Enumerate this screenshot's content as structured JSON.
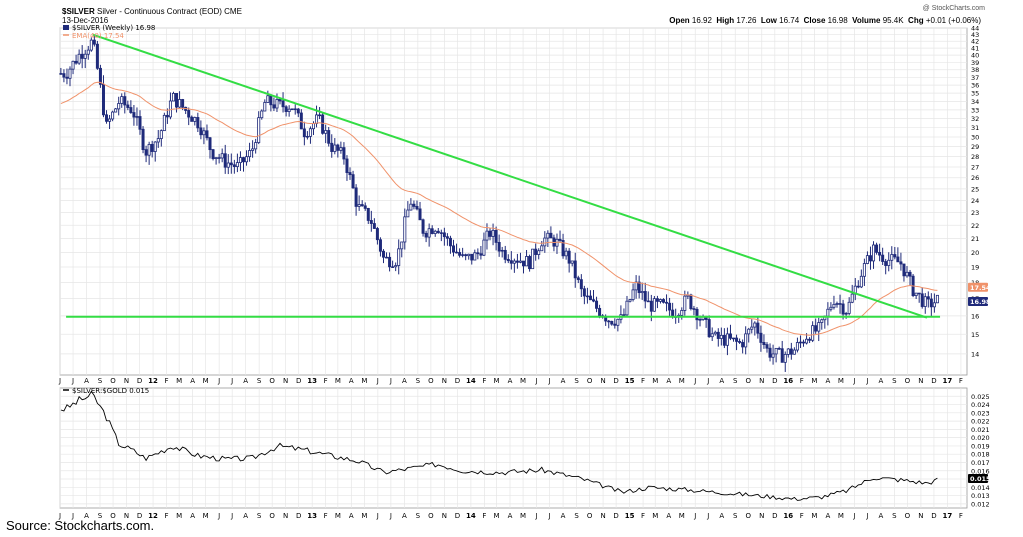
{
  "header": {
    "symbol": "$SILVER",
    "description": "Silver - Continuous Contract (EOD)",
    "exchange": "CME",
    "date": "13-Dec-2016",
    "watermark": "@ StockCharts.com",
    "quote": {
      "open_label": "Open",
      "open": "16.92",
      "high_label": "High",
      "high": "17.26",
      "low_label": "Low",
      "low": "16.74",
      "close_label": "Close",
      "close": "16.98",
      "volume_label": "Volume",
      "volume": "95.4K",
      "chg_label": "Chg",
      "chg": "+0.01 (+0.06%)"
    }
  },
  "legend": {
    "main": "$SILVER (Weekly) 16.98",
    "ema": "EMA(40) 17.54",
    "ratio": "$SILVER:$GOLD 0.015"
  },
  "source": "Source: Stockcharts.com.",
  "colors": {
    "candle": "#1f2a7a",
    "ema": "#f0926a",
    "trendline": "#33dd44",
    "ratio_line": "#000000",
    "grid": "#e6e6e6",
    "close_badge": "#1f2a7a",
    "ema_badge": "#f0926a"
  },
  "chart_data": [
    {
      "type": "candlestick",
      "title": "$SILVER (Weekly) 16.98",
      "ylim": [
        13,
        44
      ],
      "y_scale": "log",
      "y_ticks": [
        14,
        15,
        16,
        17,
        18,
        19,
        20,
        21,
        22,
        23,
        24,
        25,
        26,
        27,
        28,
        29,
        30,
        31,
        32,
        33,
        34,
        35,
        36,
        37,
        38,
        39,
        40,
        41,
        42,
        43,
        44
      ],
      "grid": true,
      "x_tick_labels": [
        "J",
        "J",
        "A",
        "S",
        "O",
        "N",
        "D",
        "12",
        "F",
        "M",
        "A",
        "M",
        "J",
        "J",
        "A",
        "S",
        "O",
        "N",
        "D",
        "13",
        "F",
        "M",
        "A",
        "M",
        "J",
        "J",
        "A",
        "S",
        "O",
        "N",
        "D",
        "14",
        "F",
        "M",
        "A",
        "M",
        "J",
        "J",
        "A",
        "S",
        "O",
        "N",
        "D",
        "15",
        "F",
        "M",
        "A",
        "M",
        "J",
        "J",
        "A",
        "S",
        "O",
        "N",
        "D",
        "16",
        "F",
        "M",
        "A",
        "M",
        "J",
        "J",
        "A",
        "S",
        "O",
        "N",
        "D",
        "17",
        "F"
      ],
      "close_anchors": [
        [
          "2011-06",
          37.5
        ],
        [
          "2011-07",
          40
        ],
        [
          "2011-08",
          42
        ],
        [
          "2011-09",
          31
        ],
        [
          "2011-10",
          34
        ],
        [
          "2011-11",
          33
        ],
        [
          "2011-12",
          28.5
        ],
        [
          "2012-01",
          30
        ],
        [
          "2012-02",
          34.5
        ],
        [
          "2012-03",
          33
        ],
        [
          "2012-04",
          31.5
        ],
        [
          "2012-05",
          28.5
        ],
        [
          "2012-06",
          27.5
        ],
        [
          "2012-07",
          27
        ],
        [
          "2012-08",
          28.5
        ],
        [
          "2012-09",
          34
        ],
        [
          "2012-10",
          33.5
        ],
        [
          "2012-11",
          33.5
        ],
        [
          "2012-12",
          30.5
        ],
        [
          "2013-01",
          32
        ],
        [
          "2013-02",
          29
        ],
        [
          "2013-03",
          28
        ],
        [
          "2013-04",
          23.5
        ],
        [
          "2013-05",
          22.5
        ],
        [
          "2013-06",
          19.5
        ],
        [
          "2013-07",
          19.5
        ],
        [
          "2013-08",
          24
        ],
        [
          "2013-09",
          21.5
        ],
        [
          "2013-10",
          22
        ],
        [
          "2013-11",
          20.5
        ],
        [
          "2013-12",
          19.5
        ],
        [
          "2014-01",
          19.8
        ],
        [
          "2014-02",
          21.5
        ],
        [
          "2014-03",
          20
        ],
        [
          "2014-04",
          19.6
        ],
        [
          "2014-05",
          19.3
        ],
        [
          "2014-06",
          21
        ],
        [
          "2014-07",
          20.8
        ],
        [
          "2014-08",
          19.5
        ],
        [
          "2014-09",
          17.2
        ],
        [
          "2014-10",
          16.5
        ],
        [
          "2014-11",
          15.8
        ],
        [
          "2014-12",
          15.8
        ],
        [
          "2015-01",
          17.8
        ],
        [
          "2015-02",
          16.6
        ],
        [
          "2015-03",
          16.6
        ],
        [
          "2015-04",
          16.2
        ],
        [
          "2015-05",
          17
        ],
        [
          "2015-06",
          15.8
        ],
        [
          "2015-07",
          14.8
        ],
        [
          "2015-08",
          14.7
        ],
        [
          "2015-09",
          14.5
        ],
        [
          "2015-10",
          15.6
        ],
        [
          "2015-11",
          14.1
        ],
        [
          "2015-12",
          13.9
        ],
        [
          "2016-01",
          14.2
        ],
        [
          "2016-02",
          15
        ],
        [
          "2016-03",
          15.3
        ],
        [
          "2016-04",
          17
        ],
        [
          "2016-05",
          16.3
        ],
        [
          "2016-06",
          18.5
        ],
        [
          "2016-07",
          20.2
        ],
        [
          "2016-08",
          19.5
        ],
        [
          "2016-09",
          19.3
        ],
        [
          "2016-10",
          17.5
        ],
        [
          "2016-11",
          16.6
        ],
        [
          "2016-12",
          16.98
        ]
      ],
      "series": [
        {
          "name": "EMA(40)",
          "last_value": 17.54
        }
      ],
      "trendlines": [
        {
          "from": [
            "2011-08",
            43
          ],
          "to": [
            "2016-11",
            15.9
          ]
        },
        {
          "from": [
            "2011-06",
            15.95
          ],
          "to": [
            "2016-12",
            15.95
          ]
        }
      ],
      "last_value_labels": [
        "17.54",
        "16.98"
      ]
    },
    {
      "type": "line",
      "title": "$SILVER:$GOLD 0.015",
      "ylim": [
        0.0115,
        0.026
      ],
      "y_ticks": [
        0.012,
        0.013,
        0.014,
        0.015,
        0.016,
        0.017,
        0.018,
        0.019,
        0.02,
        0.021,
        0.022,
        0.023,
        0.024,
        0.025
      ],
      "grid": true,
      "anchors": [
        [
          "2011-06",
          0.0235
        ],
        [
          "2011-07",
          0.0245
        ],
        [
          "2011-08",
          0.0252
        ],
        [
          "2011-09",
          0.0226
        ],
        [
          "2011-10",
          0.0192
        ],
        [
          "2011-11",
          0.0185
        ],
        [
          "2011-12",
          0.0175
        ],
        [
          "2012-02",
          0.019
        ],
        [
          "2012-04",
          0.0178
        ],
        [
          "2012-06",
          0.0174
        ],
        [
          "2012-08",
          0.0175
        ],
        [
          "2012-10",
          0.019
        ],
        [
          "2012-12",
          0.0185
        ],
        [
          "2013-02",
          0.0178
        ],
        [
          "2013-04",
          0.0172
        ],
        [
          "2013-06",
          0.0158
        ],
        [
          "2013-08",
          0.0163
        ],
        [
          "2013-10",
          0.0168
        ],
        [
          "2013-12",
          0.016
        ],
        [
          "2014-03",
          0.0158
        ],
        [
          "2014-06",
          0.0161
        ],
        [
          "2014-09",
          0.015
        ],
        [
          "2014-12",
          0.0134
        ],
        [
          "2015-02",
          0.014
        ],
        [
          "2015-05",
          0.0137
        ],
        [
          "2015-08",
          0.0133
        ],
        [
          "2015-11",
          0.0129
        ],
        [
          "2016-01",
          0.0126
        ],
        [
          "2016-03",
          0.0128
        ],
        [
          "2016-05",
          0.0136
        ],
        [
          "2016-07",
          0.0152
        ],
        [
          "2016-09",
          0.0149
        ],
        [
          "2016-11",
          0.0145
        ],
        [
          "2016-12",
          0.015
        ]
      ],
      "last_value_labels": [
        "0.015"
      ]
    }
  ]
}
